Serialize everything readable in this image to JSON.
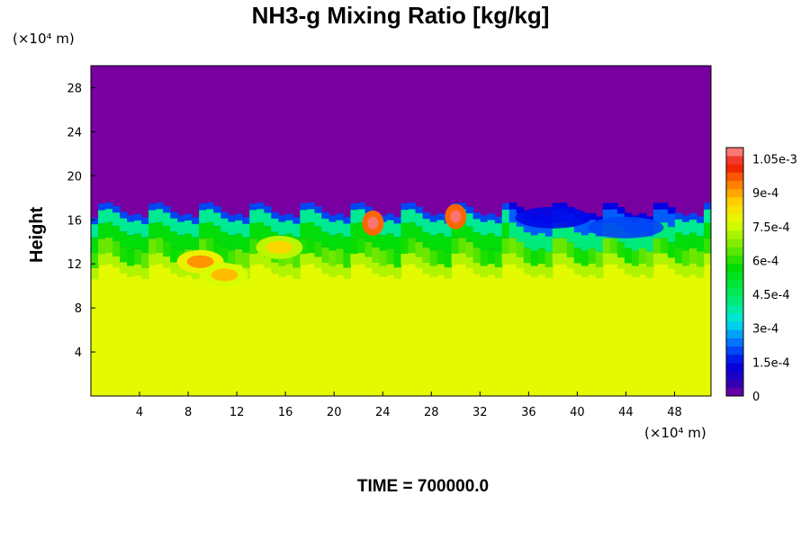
{
  "chart_data": {
    "type": "heatmap",
    "title": "NH3-g Mixing Ratio [kg/kg]",
    "ylabel": "Height",
    "xlabel": "",
    "x_unit": "(×10⁴ m)",
    "y_unit": "(×10⁴ m)",
    "x_ticks": [
      4,
      8,
      12,
      16,
      20,
      24,
      28,
      32,
      36,
      40,
      44,
      48
    ],
    "y_ticks": [
      4,
      8,
      12,
      16,
      20,
      24,
      28
    ],
    "xlim": [
      0,
      51
    ],
    "ylim": [
      0,
      30
    ],
    "colorbar": {
      "min": 0,
      "max": 0.0011,
      "tick_values": [
        0,
        0.00015,
        0.0003,
        0.00045,
        0.0006,
        0.00075,
        0.0009,
        0.00105
      ],
      "tick_labels": [
        "0",
        "1.5e-4",
        "3e-4",
        "4.5e-4",
        "6e-4",
        "7.5e-4",
        "9e-4",
        "1.05e-3"
      ]
    },
    "field_summary": {
      "upper_layer_value": 0,
      "lower_layer_value": 0.00078,
      "interface_height": 17,
      "highs": [
        {
          "x": 9,
          "y": 12.2,
          "value": 0.00092
        },
        {
          "x": 11,
          "y": 11,
          "value": 0.00088
        },
        {
          "x": 15.5,
          "y": 13.5,
          "value": 0.00085
        },
        {
          "x": 23.2,
          "y": 15.7,
          "value": 0.00108
        },
        {
          "x": 30,
          "y": 16.3,
          "value": 0.00108
        }
      ],
      "lows": [
        {
          "x": 38,
          "y": 16.2,
          "value": 0.00015
        },
        {
          "x": 44,
          "y": 15.3,
          "value": 0.0002
        }
      ]
    }
  },
  "footer": {
    "time_label": "TIME = 700000.0"
  }
}
